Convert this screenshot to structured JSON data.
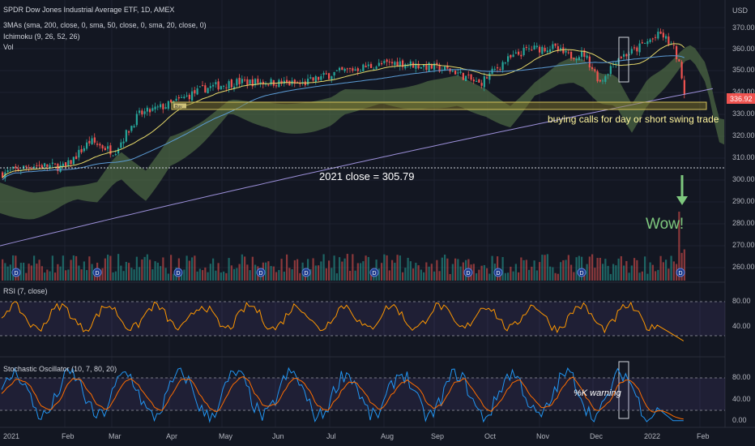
{
  "header": {
    "symbol": "SPDR Dow Jones Industrial Average ETF, 1D, AMEX",
    "ma_label": "3MAs (sma, 200, close, 0, sma, 50, close, 0, sma, 20, close, 0)",
    "ichimoku_label": "Ichimoku (9, 26, 52, 26)",
    "vol_label": "Vol"
  },
  "price_axis": {
    "currency": "USD",
    "ticks": [
      "370.00",
      "360.00",
      "350.00",
      "340.00",
      "330.00",
      "320.00",
      "310.00",
      "300.00",
      "290.00",
      "280.00",
      "270.00",
      "260.00"
    ],
    "last_price": "336.92"
  },
  "annotations": {
    "calls_note": "buying calls for day or short swing trade",
    "close_note": "2021 close = 305.79",
    "wow": "Wow!",
    "k_warning": "%K warning",
    "box_tag": "Buy"
  },
  "rsi": {
    "label": "RSI (7, close)",
    "ticks": [
      "80.00",
      "40.00"
    ]
  },
  "stoch": {
    "label": "Stochastic Oscillator (10, 7, 80, 20)",
    "ticks": [
      "80.00",
      "40.00",
      "0.00"
    ]
  },
  "time_axis": {
    "labels": [
      "2021",
      "Feb",
      "Mar",
      "Apr",
      "May",
      "Jun",
      "Jul",
      "Aug",
      "Sep",
      "Oct",
      "Nov",
      "Dec",
      "2022",
      "Feb"
    ]
  },
  "colors": {
    "bg": "#131722",
    "up": "#26a69a",
    "down": "#ef5350",
    "sma20": "#e6d96a",
    "sma50": "#5b9bd5",
    "sma200": "#9b8fd8",
    "cloud": "#4f6b44",
    "rsi": "#ff9800",
    "stoch_k": "#2196f3",
    "stoch_d": "#ff6d00",
    "yellow_note": "#fff59d",
    "wow_green": "#7ec87e"
  }
}
